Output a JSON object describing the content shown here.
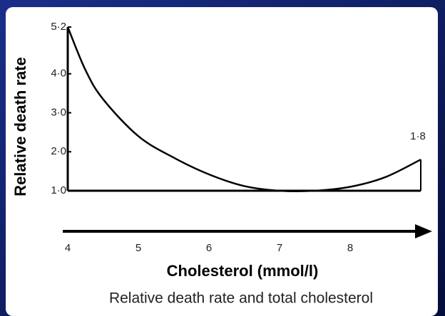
{
  "chart_data": {
    "type": "line",
    "title": "Relative death rate and total cholesterol",
    "x_label": "Cholesterol (mmol/l)",
    "y_label": "Relative death rate",
    "annotation": "1·8",
    "x": [
      4.0,
      4.25,
      4.5,
      5.0,
      5.5,
      6.0,
      6.5,
      7.0,
      7.5,
      8.0,
      8.5,
      9.0
    ],
    "values": [
      5.2,
      4.1,
      3.35,
      2.4,
      1.85,
      1.42,
      1.12,
      1.0,
      1.0,
      1.1,
      1.35,
      1.8
    ],
    "color": "#000000",
    "xlim": [
      4,
      9
    ],
    "xticks": [
      4,
      5,
      6,
      7,
      8
    ],
    "ylim": [
      1,
      5.2
    ],
    "yticks": [
      {
        "value": 1.0,
        "label": "1·0"
      },
      {
        "value": 2.0,
        "label": "2·0"
      },
      {
        "value": 3.0,
        "label": "3·0"
      },
      {
        "value": 4.0,
        "label": "4·0"
      },
      {
        "value": 5.2,
        "label": "5·2"
      }
    ]
  }
}
